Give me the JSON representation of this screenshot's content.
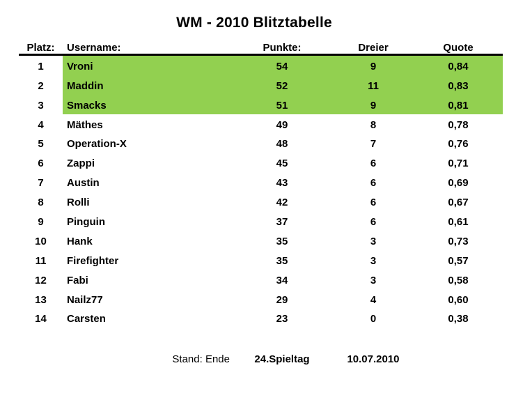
{
  "title": "WM - 2010 Blitztabelle",
  "table": {
    "headers": {
      "platz": "Platz:",
      "username": "Username:",
      "punkte": "Punkte:",
      "dreier": "Dreier",
      "quote": "Quote"
    },
    "rows": [
      {
        "platz": "1",
        "username": "Vroni",
        "punkte": "54",
        "dreier": "9",
        "quote": "0,84",
        "highlighted": true
      },
      {
        "platz": "2",
        "username": "Maddin",
        "punkte": "52",
        "dreier": "11",
        "quote": "0,83",
        "highlighted": true
      },
      {
        "platz": "3",
        "username": "Smacks",
        "punkte": "51",
        "dreier": "9",
        "quote": "0,81",
        "highlighted": true
      },
      {
        "platz": "4",
        "username": "Mäthes",
        "punkte": "49",
        "dreier": "8",
        "quote": "0,78",
        "highlighted": false
      },
      {
        "platz": "5",
        "username": "Operation-X",
        "punkte": "48",
        "dreier": "7",
        "quote": "0,76",
        "highlighted": false
      },
      {
        "platz": "6",
        "username": "Zappi",
        "punkte": "45",
        "dreier": "6",
        "quote": "0,71",
        "highlighted": false
      },
      {
        "platz": "7",
        "username": "Austin",
        "punkte": "43",
        "dreier": "6",
        "quote": "0,69",
        "highlighted": false
      },
      {
        "platz": "8",
        "username": "Rolli",
        "punkte": "42",
        "dreier": "6",
        "quote": "0,67",
        "highlighted": false
      },
      {
        "platz": "9",
        "username": "Pinguin",
        "punkte": "37",
        "dreier": "6",
        "quote": "0,61",
        "highlighted": false
      },
      {
        "platz": "10",
        "username": "Hank",
        "punkte": "35",
        "dreier": "3",
        "quote": "0,73",
        "highlighted": false
      },
      {
        "platz": "11",
        "username": "Firefighter",
        "punkte": "35",
        "dreier": "3",
        "quote": "0,57",
        "highlighted": false
      },
      {
        "platz": "12",
        "username": "Fabi",
        "punkte": "34",
        "dreier": "3",
        "quote": "0,58",
        "highlighted": false
      },
      {
        "platz": "13",
        "username": "Nailz77",
        "punkte": "29",
        "dreier": "4",
        "quote": "0,60",
        "highlighted": false
      },
      {
        "platz": "14",
        "username": "Carsten",
        "punkte": "23",
        "dreier": "0",
        "quote": "0,38",
        "highlighted": false
      }
    ]
  },
  "footer": {
    "stand": "Stand: Ende",
    "spieltag": "24.Spieltag",
    "datum": "10.07.2010"
  },
  "colors": {
    "highlight_green": "#92D050",
    "text": "#000000",
    "divider": "#000000"
  }
}
